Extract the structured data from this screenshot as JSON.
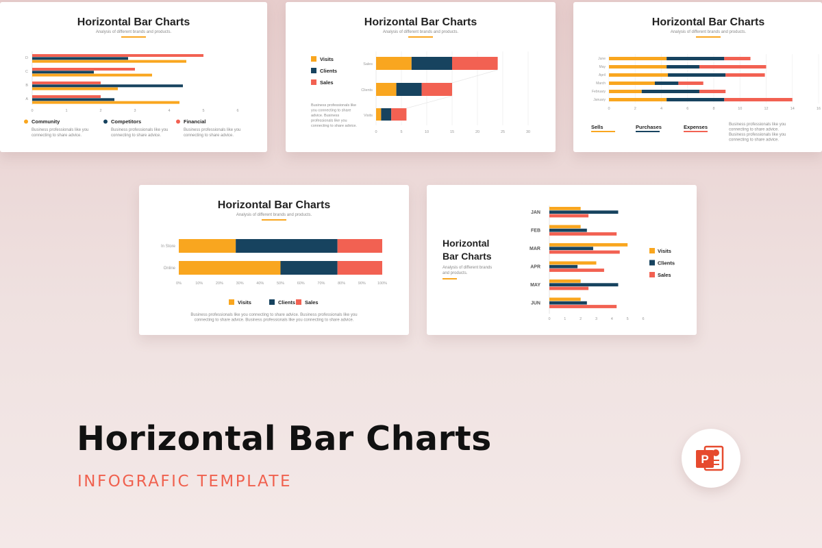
{
  "colors": {
    "orange": "#f9a61f",
    "navy": "#17435f",
    "coral": "#f26152",
    "axis": "#999999",
    "text": "#222222",
    "muted": "#888888"
  },
  "hero": {
    "title": "Horizontal Bar Charts",
    "subtitle": "INFOGRAFIC TEMPLATE",
    "icon": "powerpoint-icon"
  },
  "slides": [
    {
      "title": "Horizontal Bar Charts",
      "subtitle": "Analysis of different brands and products.",
      "legend": [
        {
          "label": "Community",
          "desc": "Business professionals like you connecting to share advice."
        },
        {
          "label": "Competitors",
          "desc": "Business professionals like you connecting to share advice."
        },
        {
          "label": "Financial",
          "desc": "Business professionals like you connecting to share advice."
        }
      ]
    },
    {
      "title": "Horizontal Bar Charts",
      "subtitle": "Analysis of different brands and products.",
      "legend": [
        {
          "label": "Visits"
        },
        {
          "label": "Clients"
        },
        {
          "label": "Sales"
        }
      ],
      "note": "Business professionals like you connecting to share advice. Business professionals like you connecting to share advice."
    },
    {
      "title": "Horizontal Bar Charts",
      "subtitle": "Analysis of different brands and products.",
      "legend": [
        {
          "label": "Sells"
        },
        {
          "label": "Purchases"
        },
        {
          "label": "Expenses"
        }
      ],
      "note": "Business professionals like you connecting to share advice. Business professionals like you connecting to share advice."
    },
    {
      "title": "Horizontal Bar Charts",
      "subtitle": "Analysis of different brands and products.",
      "legend": [
        {
          "label": "Visits"
        },
        {
          "label": "Clients"
        },
        {
          "label": "Sales"
        }
      ],
      "note": "Business professionals like you connecting to share advice. Business professionals like you connecting to share advice. Business professionals like you connecting to share advice."
    },
    {
      "title_lines": [
        "Horizontal",
        "Bar Charts"
      ],
      "subtitle_lines": [
        "Analysis of different brands",
        "and products."
      ],
      "legend": [
        {
          "label": "Visits"
        },
        {
          "label": "Clients"
        },
        {
          "label": "Sales"
        }
      ]
    }
  ],
  "chart_data": [
    {
      "type": "bar",
      "orientation": "horizontal",
      "categories": [
        "D",
        "C",
        "B",
        "A"
      ],
      "xlim": [
        0,
        6
      ],
      "x_ticks": [
        "0",
        "1",
        "2",
        "3",
        "4",
        "5",
        "6"
      ],
      "series": [
        {
          "name": "Financial",
          "values": [
            5.0,
            3.0,
            2.0,
            2.0
          ]
        },
        {
          "name": "Competitors",
          "values": [
            2.8,
            1.8,
            4.4,
            2.4
          ]
        },
        {
          "name": "Community",
          "values": [
            4.5,
            3.5,
            2.5,
            4.3
          ]
        }
      ]
    },
    {
      "type": "bar",
      "orientation": "horizontal",
      "stacked": true,
      "categories": [
        "Sales",
        "Clients",
        "Visits"
      ],
      "xlim": [
        0,
        30
      ],
      "x_ticks": [
        "0",
        "5",
        "10",
        "15",
        "20",
        "25",
        "30"
      ],
      "series": [
        {
          "name": "Visits",
          "values": [
            7,
            4,
            1
          ]
        },
        {
          "name": "Clients",
          "values": [
            8,
            5,
            2
          ]
        },
        {
          "name": "Sales",
          "values": [
            9,
            6,
            3
          ]
        }
      ]
    },
    {
      "type": "bar",
      "orientation": "horizontal",
      "stacked": true,
      "categories": [
        "June",
        "May",
        "April",
        "March",
        "February",
        "January"
      ],
      "xlim": [
        0,
        16
      ],
      "x_ticks": [
        "0",
        "2",
        "4",
        "6",
        "8",
        "10",
        "12",
        "14",
        "16"
      ],
      "series": [
        {
          "name": "Sells",
          "values": [
            4.4,
            4.4,
            4.5,
            3.5,
            2.5,
            4.4
          ]
        },
        {
          "name": "Purchases",
          "values": [
            4.4,
            2.5,
            4.4,
            1.8,
            4.4,
            4.4
          ]
        },
        {
          "name": "Expenses",
          "values": [
            2.0,
            5.1,
            3.0,
            1.9,
            2.0,
            5.2
          ]
        }
      ]
    },
    {
      "type": "bar",
      "orientation": "horizontal",
      "stacked": true,
      "categories": [
        "In Store",
        "Online"
      ],
      "xlim": [
        0,
        100
      ],
      "x_ticks": [
        "0%",
        "10%",
        "20%",
        "30%",
        "40%",
        "50%",
        "60%",
        "70%",
        "80%",
        "90%",
        "100%"
      ],
      "series": [
        {
          "name": "Visits",
          "values": [
            28,
            50
          ]
        },
        {
          "name": "Clients",
          "values": [
            50,
            28
          ]
        },
        {
          "name": "Sales",
          "values": [
            22,
            22
          ]
        }
      ]
    },
    {
      "type": "bar",
      "orientation": "horizontal",
      "categories": [
        "JAN",
        "FEB",
        "MAR",
        "APR",
        "MAY",
        "JUN"
      ],
      "xlim": [
        0,
        6
      ],
      "x_ticks": [
        "0",
        "1",
        "2",
        "3",
        "4",
        "5",
        "6"
      ],
      "series": [
        {
          "name": "Visits",
          "values": [
            2.0,
            2.0,
            5.0,
            3.0,
            2.0,
            2.0
          ]
        },
        {
          "name": "Clients",
          "values": [
            4.4,
            2.4,
            2.8,
            1.8,
            4.4,
            2.4
          ]
        },
        {
          "name": "Sales",
          "values": [
            2.5,
            4.3,
            4.5,
            3.5,
            2.5,
            4.3
          ]
        }
      ]
    }
  ]
}
